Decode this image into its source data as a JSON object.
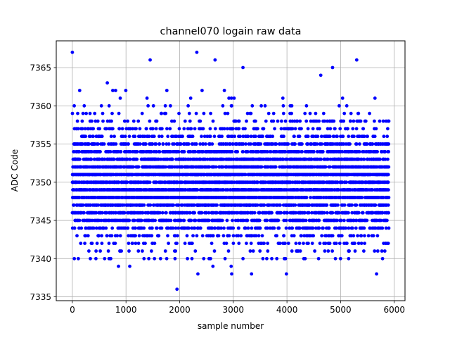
{
  "chart_data": {
    "type": "scatter",
    "title": "channel070 logain raw data",
    "xlabel": "sample number",
    "ylabel": "ADC Code",
    "xlim": [
      -300,
      6200
    ],
    "ylim": [
      7334.5,
      7368.5
    ],
    "xticks": [
      0,
      1000,
      2000,
      3000,
      4000,
      5000,
      6000
    ],
    "yticks": [
      7335,
      7340,
      7345,
      7350,
      7355,
      7360,
      7365
    ],
    "grid": true,
    "series": [
      {
        "color": "#0000ff",
        "marker": "circle",
        "n_points": 5900,
        "mean": 7350,
        "std": 3.8,
        "min": 7336,
        "max": 7367,
        "notable_points": [
          {
            "x": 0,
            "y": 7367
          },
          {
            "x": 2320,
            "y": 7367
          },
          {
            "x": 1450,
            "y": 7366
          },
          {
            "x": 2660,
            "y": 7366
          },
          {
            "x": 5300,
            "y": 7366
          },
          {
            "x": 3180,
            "y": 7365
          },
          {
            "x": 4850,
            "y": 7365
          },
          {
            "x": 4630,
            "y": 7364
          },
          {
            "x": 1950,
            "y": 7336
          },
          {
            "x": 2340,
            "y": 7338
          },
          {
            "x": 2970,
            "y": 7338
          },
          {
            "x": 3340,
            "y": 7338
          },
          {
            "x": 3990,
            "y": 7338
          },
          {
            "x": 5670,
            "y": 7338
          },
          {
            "x": 860,
            "y": 7339
          },
          {
            "x": 1070,
            "y": 7339
          },
          {
            "x": 2620,
            "y": 7339
          },
          {
            "x": 2960,
            "y": 7339
          },
          {
            "x": 5150,
            "y": 7340
          }
        ]
      }
    ]
  }
}
